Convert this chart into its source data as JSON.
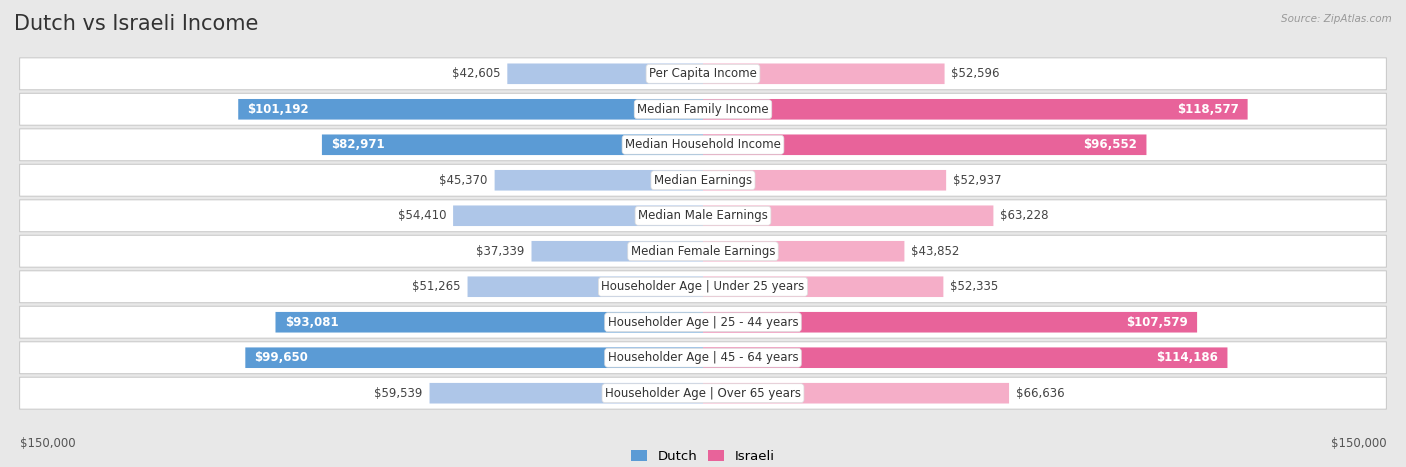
{
  "title": "Dutch vs Israeli Income",
  "source": "Source: ZipAtlas.com",
  "categories": [
    "Per Capita Income",
    "Median Family Income",
    "Median Household Income",
    "Median Earnings",
    "Median Male Earnings",
    "Median Female Earnings",
    "Householder Age | Under 25 years",
    "Householder Age | 25 - 44 years",
    "Householder Age | 45 - 64 years",
    "Householder Age | Over 65 years"
  ],
  "dutch_values": [
    42605,
    101192,
    82971,
    45370,
    54410,
    37339,
    51265,
    93081,
    99650,
    59539
  ],
  "israeli_values": [
    52596,
    118577,
    96552,
    52937,
    63228,
    43852,
    52335,
    107579,
    114186,
    66636
  ],
  "dutch_labels": [
    "$42,605",
    "$101,192",
    "$82,971",
    "$45,370",
    "$54,410",
    "$37,339",
    "$51,265",
    "$93,081",
    "$99,650",
    "$59,539"
  ],
  "israeli_labels": [
    "$52,596",
    "$118,577",
    "$96,552",
    "$52,937",
    "$63,228",
    "$43,852",
    "$52,335",
    "$107,579",
    "$114,186",
    "$66,636"
  ],
  "dutch_color_light": "#aec6e8",
  "dutch_color_dark": "#5b9bd5",
  "israeli_color_light": "#f5aec8",
  "israeli_color_dark": "#e8639a",
  "max_value": 150000,
  "legend_dutch": "Dutch",
  "legend_israeli": "Israeli",
  "background_color": "#e8e8e8",
  "row_bg_color": "#ffffff",
  "title_fontsize": 15,
  "label_fontsize": 8.5,
  "value_fontsize": 8.5,
  "axis_label": "$150,000",
  "label_inside_threshold": 70000
}
